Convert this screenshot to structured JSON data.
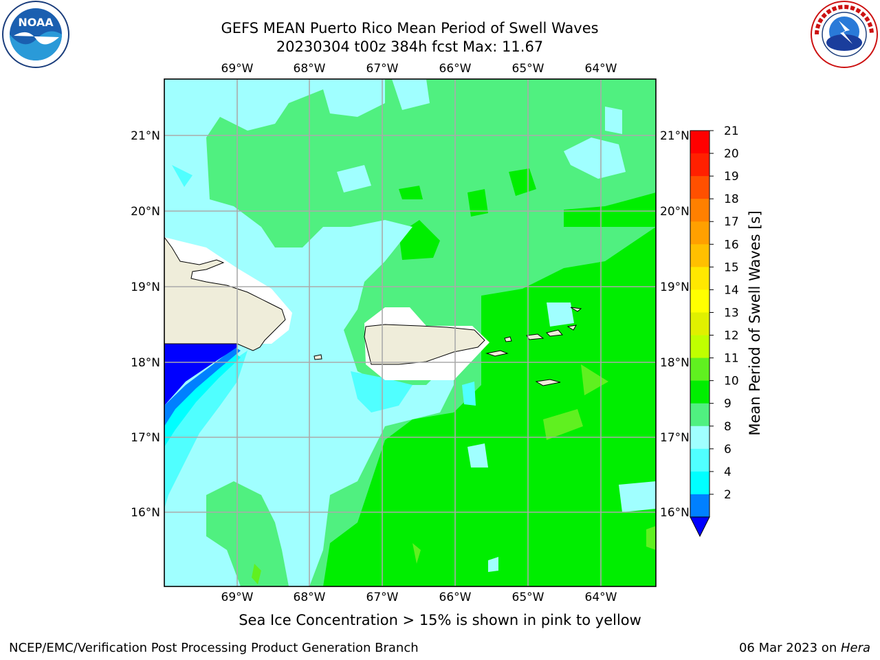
{
  "title_line1": "GEFS MEAN Puerto Rico Mean Period of Swell Waves",
  "title_line2": "20230304 t00z 384h fcst   Max: 11.67",
  "caption": "Sea Ice Concentration > 15% is shown in pink to yellow",
  "footer_left": "NCEP/EMC/Verification Post Processing Product Generation Branch",
  "footer_date": "06 Mar 2023 on ",
  "footer_machine": "Hera",
  "logos": {
    "left": "noaa-logo",
    "right": "national-weather-service-logo"
  },
  "map": {
    "lon_labels": [
      "69°W",
      "68°W",
      "67°W",
      "66°W",
      "65°W",
      "64°W"
    ],
    "lat_labels": [
      "21°N",
      "20°N",
      "19°N",
      "18°N",
      "17°N",
      "16°N"
    ],
    "land_color": "#efedda",
    "ocean_base_color": "#50f080"
  },
  "colorbar": {
    "title": "Mean Period of Swell Waves [s]",
    "ticks": [
      "21",
      "20",
      "19",
      "18",
      "17",
      "16",
      "15",
      "14",
      "13",
      "12",
      "11",
      "10",
      "9",
      "8",
      "6",
      "4",
      "2"
    ],
    "colors_top_to_bottom": [
      "#ff0000",
      "#ff2000",
      "#ff5000",
      "#ff8000",
      "#ffa000",
      "#ffc000",
      "#ffe800",
      "#ffff00",
      "#e0f000",
      "#c0ff00",
      "#60f020",
      "#00ee00",
      "#50f080",
      "#a0ffff",
      "#50ffff",
      "#00ffff",
      "#0080ff"
    ],
    "extend_color": "#0000ff"
  }
}
